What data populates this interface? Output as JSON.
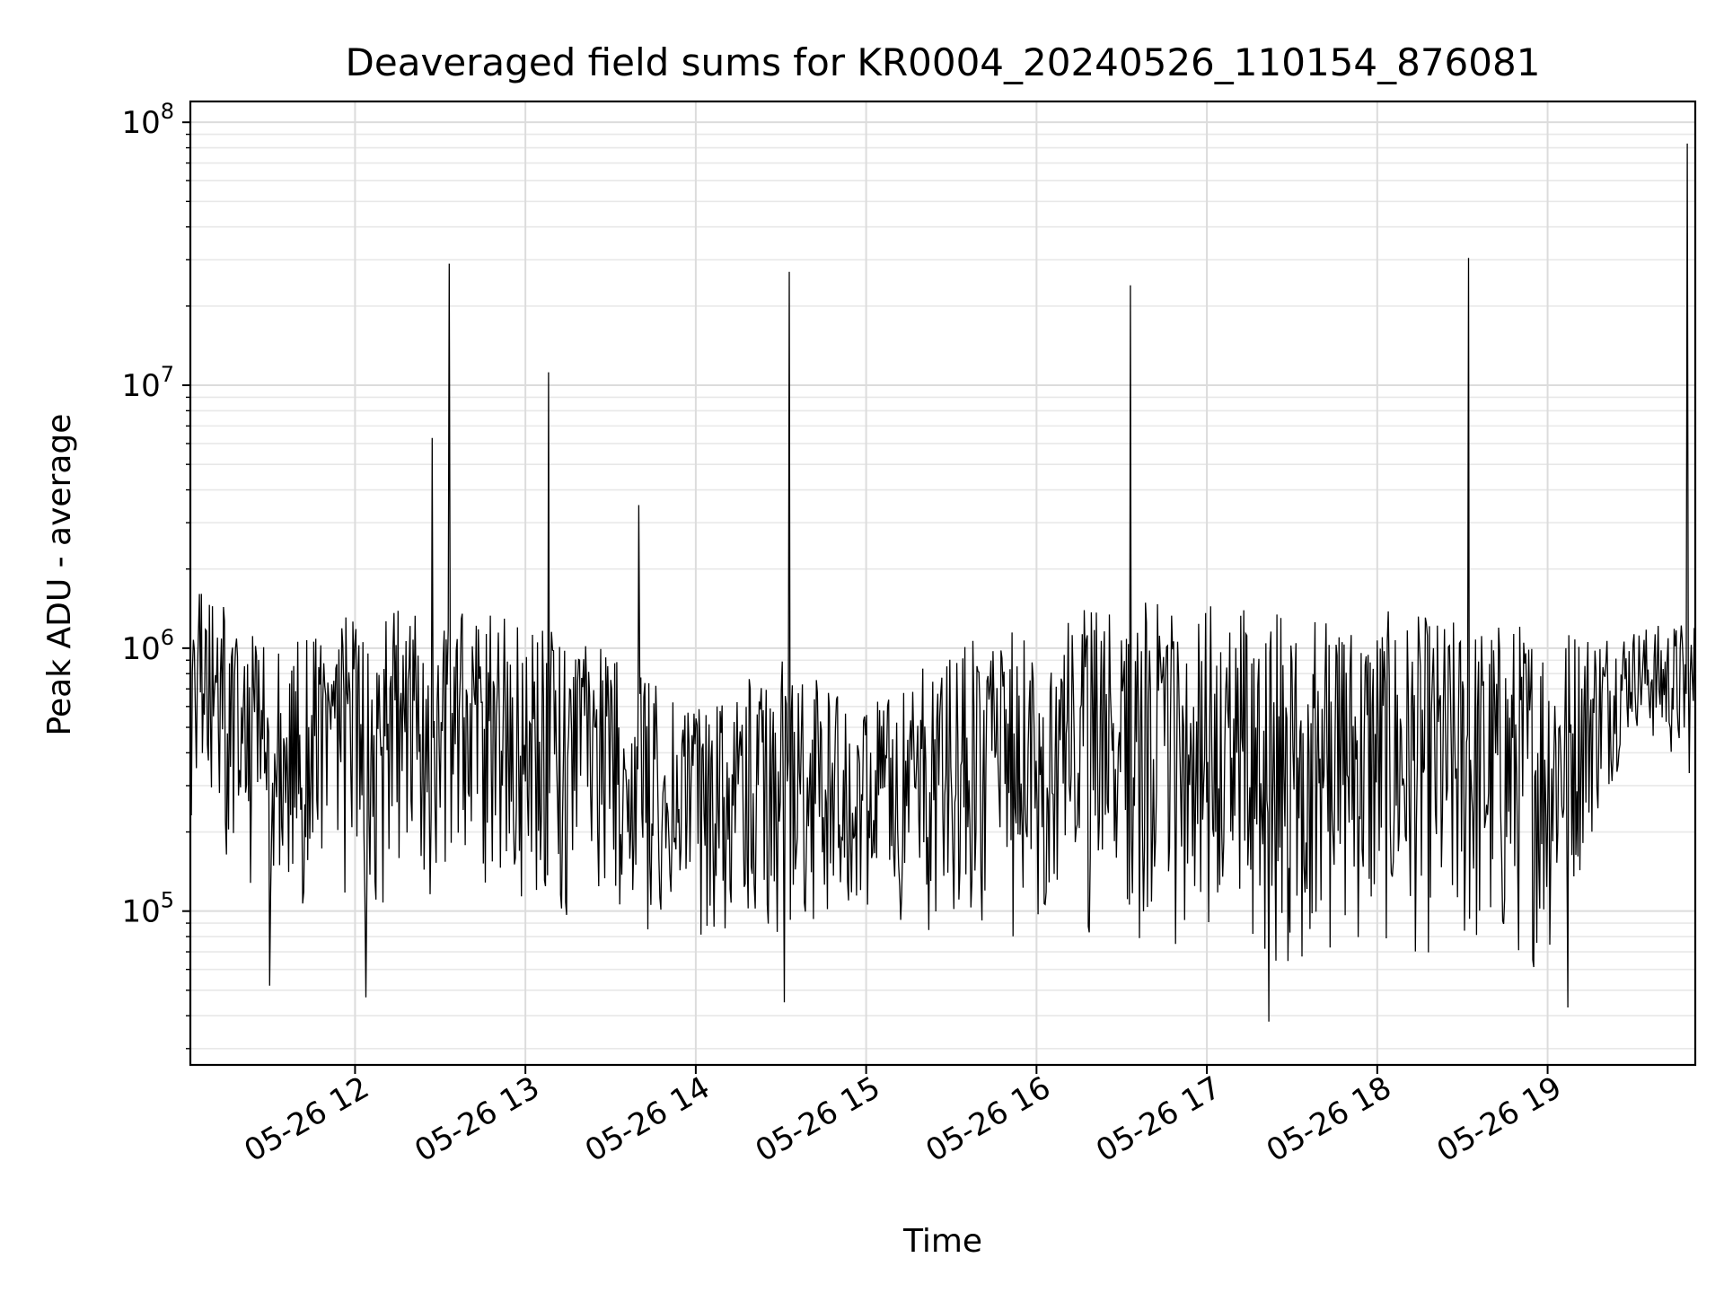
{
  "chart_data": {
    "type": "line",
    "title": "Deaveraged field sums for KR0004_20240526_110154_876081",
    "xlabel": "Time",
    "ylabel": "Peak ADU - average",
    "x_ticks": [
      "05-26 12",
      "05-26 13",
      "05-26 14",
      "05-26 15",
      "05-26 16",
      "05-26 17",
      "05-26 18",
      "05-26 19"
    ],
    "y_ticks": [
      {
        "exp": 5,
        "value": 100000
      },
      {
        "exp": 6,
        "value": 1000000
      },
      {
        "exp": 7,
        "value": 10000000
      },
      {
        "exp": 8,
        "value": 100000000
      }
    ],
    "y_scale": "log",
    "x_range": [
      "2024-05-26 11:02",
      "2024-05-26 19:52"
    ],
    "ylim": [
      26000,
      120000000
    ],
    "grid": true,
    "line_color": "#000000",
    "spikes": [
      {
        "time": "2024-05-26 12:27",
        "value": 6300000
      },
      {
        "time": "2024-05-26 12:33",
        "value": 29000000
      },
      {
        "time": "2024-05-26 13:08",
        "value": 11200000
      },
      {
        "time": "2024-05-26 13:40",
        "value": 3500000
      },
      {
        "time": "2024-05-26 14:33",
        "value": 27000000
      },
      {
        "time": "2024-05-26 16:33",
        "value": 24000000
      },
      {
        "time": "2024-05-26 18:32",
        "value": 30500000
      },
      {
        "time": "2024-05-26 19:49",
        "value": 83000000
      }
    ],
    "minima": [
      {
        "time": "2024-05-26 11:30",
        "value": 52000
      },
      {
        "time": "2024-05-26 12:04",
        "value": 47000
      },
      {
        "time": "2024-05-26 14:31",
        "value": 45000
      },
      {
        "time": "2024-05-26 17:22",
        "value": 38000
      },
      {
        "time": "2024-05-26 19:07",
        "value": 43000
      }
    ],
    "envelope": [
      {
        "time": "2024-05-26 11:02",
        "low": 200000,
        "high": 1900000
      },
      {
        "time": "2024-05-26 11:30",
        "low": 110000,
        "high": 1000000
      },
      {
        "time": "2024-05-26 12:00",
        "low": 100000,
        "high": 1400000
      },
      {
        "time": "2024-05-26 12:30",
        "low": 110000,
        "high": 1400000
      },
      {
        "time": "2024-05-26 13:00",
        "low": 100000,
        "high": 1300000
      },
      {
        "time": "2024-05-26 13:30",
        "low": 90000,
        "high": 1000000
      },
      {
        "time": "2024-05-26 14:00",
        "low": 70000,
        "high": 600000
      },
      {
        "time": "2024-05-26 14:30",
        "low": 80000,
        "high": 900000
      },
      {
        "time": "2024-05-26 15:00",
        "low": 90000,
        "high": 600000
      },
      {
        "time": "2024-05-26 15:30",
        "low": 80000,
        "high": 1000000
      },
      {
        "time": "2024-05-26 16:00",
        "low": 80000,
        "high": 1300000
      },
      {
        "time": "2024-05-26 16:30",
        "low": 70000,
        "high": 1500000
      },
      {
        "time": "2024-05-26 17:00",
        "low": 60000,
        "high": 1500000
      },
      {
        "time": "2024-05-26 17:30",
        "low": 60000,
        "high": 1400000
      },
      {
        "time": "2024-05-26 18:00",
        "low": 70000,
        "high": 1400000
      },
      {
        "time": "2024-05-26 18:30",
        "low": 60000,
        "high": 1300000
      },
      {
        "time": "2024-05-26 19:00",
        "low": 60000,
        "high": 1300000
      },
      {
        "time": "2024-05-26 19:30",
        "low": 500000,
        "high": 1200000
      },
      {
        "time": "2024-05-26 19:52",
        "low": 300000,
        "high": 1300000
      }
    ]
  }
}
